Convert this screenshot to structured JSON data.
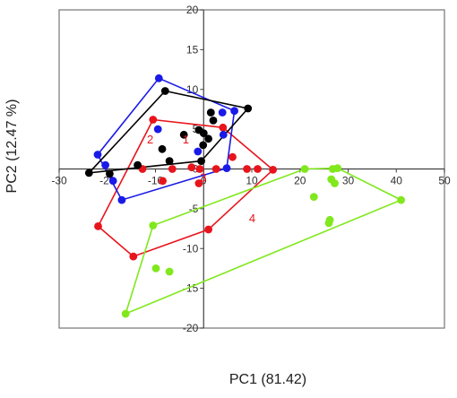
{
  "chart_data": {
    "type": "scatter",
    "title": "",
    "xlabel": "PC1 (81.42)",
    "ylabel": "PC2 (12.47 %)",
    "xlim": [
      -30,
      50
    ],
    "ylim": [
      -20,
      20
    ],
    "x_ticks": [
      -30,
      -20,
      -10,
      0,
      10,
      20,
      30,
      40,
      50
    ],
    "x_tick_labels": [
      "-30",
      "-20",
      "-10",
      "0",
      "10",
      "20",
      "30",
      "40",
      "50"
    ],
    "y_ticks": [
      20,
      15,
      10,
      5,
      0,
      -5,
      -10,
      -15,
      -20
    ],
    "y_tick_labels": [
      "20",
      "15",
      "10",
      "5",
      "0",
      "-5",
      "-10",
      "-15",
      "-20"
    ],
    "grid": false,
    "series": [
      {
        "name": "1",
        "color": "#e8141c",
        "hull": [
          [
            -10.5,
            6.2
          ],
          [
            4.0,
            5.2
          ],
          [
            14.4,
            -0.1
          ],
          [
            1.0,
            -7.6
          ],
          [
            -14.6,
            -11.0
          ],
          [
            -21.9,
            -7.2
          ]
        ],
        "points": [
          [
            -10.5,
            6.2
          ],
          [
            4.0,
            5.2
          ],
          [
            14.4,
            -0.1
          ],
          [
            1.0,
            -7.6
          ],
          [
            -14.6,
            -11.0
          ],
          [
            -21.9,
            -7.2
          ],
          [
            -12.7,
            0.0
          ],
          [
            -8.5,
            -1.5
          ],
          [
            -6.5,
            0.0
          ],
          [
            -2.5,
            0.2
          ],
          [
            -1.0,
            -1.8
          ],
          [
            -0.8,
            0.0
          ],
          [
            2.6,
            0.0
          ],
          [
            6.0,
            1.5
          ],
          [
            9.0,
            0.0
          ],
          [
            11.2,
            0.0
          ]
        ],
        "label_text": "1",
        "label_at": [
          -3.7,
          3.2
        ]
      },
      {
        "name": "2",
        "color": "#1a1ae8",
        "hull": [
          [
            -9.3,
            11.4
          ],
          [
            6.4,
            7.3
          ],
          [
            4.8,
            0.1
          ],
          [
            -17.0,
            -3.9
          ],
          [
            -22.0,
            1.8
          ]
        ],
        "points": [
          [
            -9.3,
            11.4
          ],
          [
            6.4,
            7.3
          ],
          [
            4.8,
            0.1
          ],
          [
            -17.0,
            -3.9
          ],
          [
            -22.0,
            1.8
          ],
          [
            -20.4,
            0.5
          ],
          [
            -18.8,
            -1.5
          ],
          [
            -9.5,
            5.0
          ],
          [
            4.1,
            4.3
          ],
          [
            -1.2,
            2.2
          ],
          [
            3.9,
            7.1
          ]
        ],
        "label_text": "2",
        "label_at": [
          -11.1,
          3.2
        ]
      },
      {
        "name": "3",
        "color": "#000000",
        "hull": [
          [
            -8.0,
            9.8
          ],
          [
            9.2,
            7.6
          ],
          [
            -0.5,
            1.0
          ],
          [
            -23.8,
            -0.5
          ]
        ],
        "points": [
          [
            -8.0,
            9.8
          ],
          [
            9.2,
            7.6
          ],
          [
            -0.5,
            1.0
          ],
          [
            -23.8,
            -0.5
          ],
          [
            -19.5,
            -0.6
          ],
          [
            -13.7,
            0.5
          ],
          [
            -7.1,
            1.0
          ],
          [
            -8.6,
            2.5
          ],
          [
            -4.1,
            4.3
          ],
          [
            -1.0,
            4.9
          ],
          [
            0.0,
            4.5
          ],
          [
            1.0,
            3.8
          ],
          [
            1.5,
            7.1
          ],
          [
            2.0,
            6.1
          ],
          [
            -0.1,
            3.0
          ]
        ],
        "label_text": "3",
        "label_at": [
          -0.1,
          -1.6
        ]
      },
      {
        "name": "4",
        "color": "#80e81c",
        "hull": [
          [
            21.0,
            0.0
          ],
          [
            27.8,
            0.1
          ],
          [
            41.0,
            -3.9
          ],
          [
            -16.2,
            -18.2
          ],
          [
            -10.5,
            -7.1
          ]
        ],
        "points": [
          [
            21.0,
            0.0
          ],
          [
            27.8,
            0.1
          ],
          [
            41.0,
            -3.9
          ],
          [
            -16.2,
            -18.2
          ],
          [
            -10.5,
            -7.1
          ],
          [
            26.8,
            0.0
          ],
          [
            26.5,
            -1.3
          ],
          [
            27.2,
            -1.8
          ],
          [
            22.9,
            -3.5
          ],
          [
            26.2,
            -6.4
          ],
          [
            26.0,
            -6.8
          ],
          [
            -9.9,
            -12.5
          ],
          [
            -7.1,
            -12.9
          ]
        ],
        "label_text": "4",
        "label_at": [
          10.1,
          -6.7
        ]
      }
    ]
  }
}
